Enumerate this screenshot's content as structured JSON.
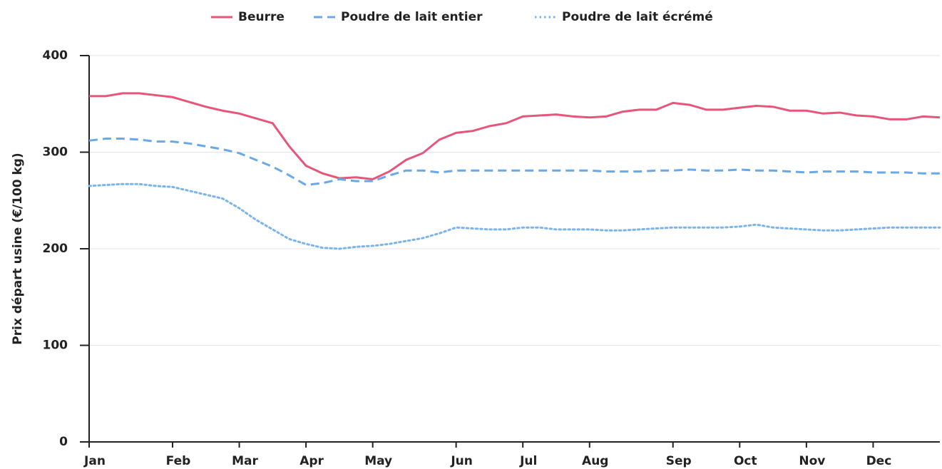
{
  "chart_data": {
    "type": "line",
    "y_label": "Prix départ usine (€/100 kg)",
    "categories": [
      "Jan",
      null,
      null,
      null,
      null,
      "Feb",
      null,
      null,
      null,
      "Mar",
      null,
      null,
      null,
      "Apr",
      null,
      null,
      null,
      "May",
      null,
      null,
      null,
      null,
      "Jun",
      null,
      null,
      null,
      "Jul",
      null,
      null,
      null,
      "Aug",
      null,
      null,
      null,
      null,
      "Sep",
      null,
      null,
      null,
      "Oct",
      null,
      null,
      null,
      "Nov",
      null,
      null,
      null,
      "Dec",
      null,
      null,
      null,
      null
    ],
    "series": [
      {
        "name": "Beurre",
        "color": "#e8557a",
        "dash": "solid",
        "values": [
          358,
          358,
          361,
          361,
          359,
          357,
          352,
          347,
          343,
          340,
          335,
          330,
          306,
          286,
          278,
          273,
          274,
          272,
          280,
          292,
          299,
          313,
          320,
          322,
          327,
          330,
          337,
          338,
          339,
          337,
          336,
          337,
          342,
          344,
          344,
          351,
          349,
          344,
          344,
          346,
          348,
          347,
          343,
          343,
          340,
          341,
          338,
          337,
          334,
          334,
          337,
          336
        ]
      },
      {
        "name": "Poudre de lait entier",
        "color": "#6aa9e9",
        "dash": "dashed",
        "values": [
          312,
          314,
          314,
          313,
          311,
          311,
          309,
          306,
          303,
          299,
          292,
          285,
          276,
          266,
          268,
          272,
          270,
          270,
          276,
          281,
          281,
          279,
          281,
          281,
          281,
          281,
          281,
          281,
          281,
          281,
          281,
          280,
          280,
          280,
          281,
          281,
          282,
          281,
          281,
          282,
          281,
          281,
          280,
          279,
          280,
          280,
          280,
          279,
          279,
          279,
          278,
          278
        ]
      },
      {
        "name": "Poudre de lait écrémé",
        "color": "#7ab4ec",
        "dash": "dotted",
        "values": [
          265,
          266,
          267,
          267,
          265,
          264,
          260,
          256,
          252,
          242,
          230,
          220,
          210,
          205,
          201,
          200,
          202,
          203,
          205,
          208,
          211,
          216,
          222,
          221,
          220,
          220,
          222,
          222,
          220,
          220,
          220,
          219,
          219,
          220,
          221,
          222,
          222,
          222,
          222,
          223,
          225,
          222,
          221,
          220,
          219,
          219,
          220,
          221,
          222,
          222,
          222,
          222
        ]
      }
    ],
    "ylim": [
      0,
      400
    ],
    "yticks": [
      0,
      100,
      200,
      300,
      400
    ],
    "grid": true,
    "legend": "top"
  }
}
